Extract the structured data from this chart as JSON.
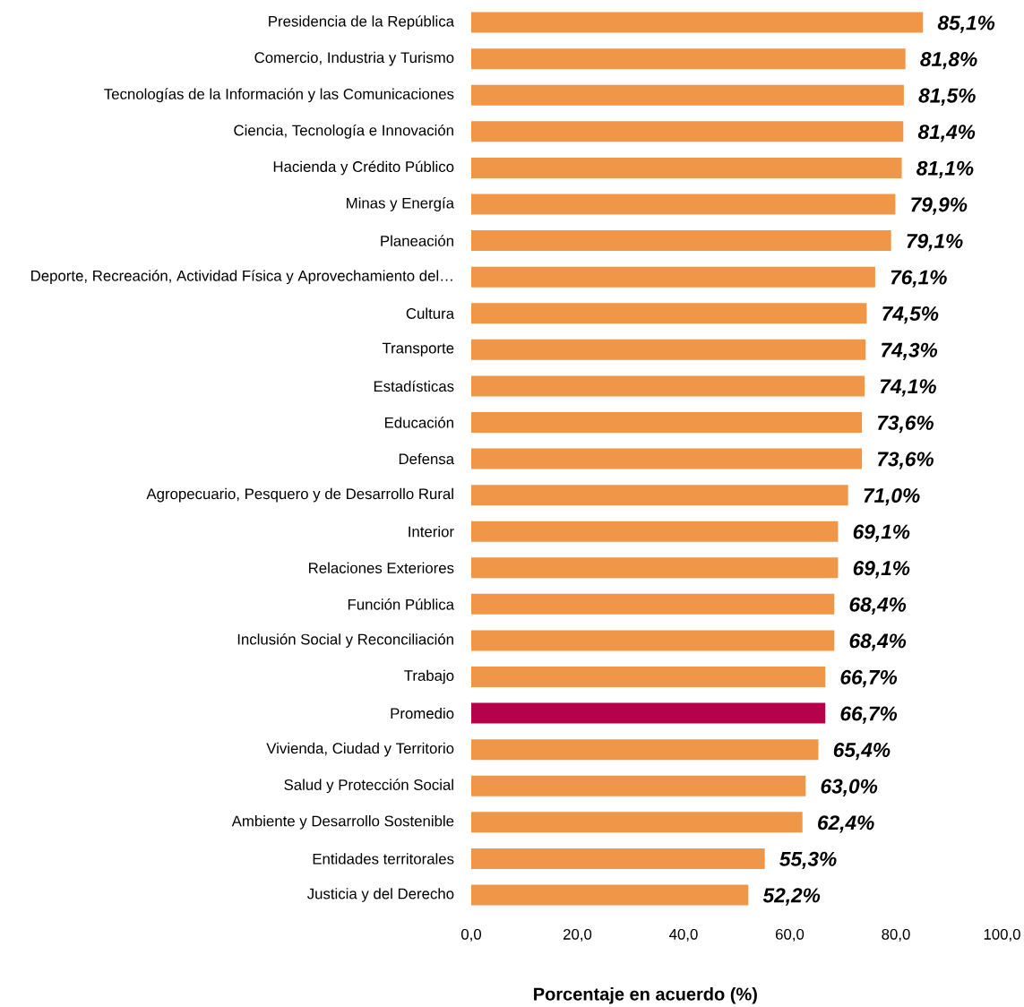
{
  "chart_data": {
    "type": "bar",
    "orientation": "horizontal",
    "xlabel": "Porcentaje en acuerdo (%)",
    "categories": [
      "Presidencia de la República",
      "Comercio, Industria y Turismo",
      "Tecnologías de la Información y las Comunicaciones",
      "Ciencia, Tecnología e Innovación",
      "Hacienda y Crédito Público",
      "Minas y Energía",
      "Planeación",
      "Deporte, Recreación, Actividad Física y Aprovechamiento del…",
      "Cultura",
      "Transporte",
      "Estadísticas",
      "Educación",
      "Defensa",
      "Agropecuario, Pesquero y de Desarrollo Rural",
      "Interior",
      "Relaciones Exteriores",
      "Función Pública",
      "Inclusión Social y Reconciliación",
      "Trabajo",
      "Promedio",
      "Vivienda, Ciudad y Territorio",
      "Salud y Protección Social",
      "Ambiente y Desarrollo Sostenible",
      "Entidades territorales",
      "Justicia y del Derecho"
    ],
    "values": [
      85.1,
      81.8,
      81.5,
      81.4,
      81.1,
      79.9,
      79.1,
      76.1,
      74.5,
      74.3,
      74.1,
      73.6,
      73.6,
      71.0,
      69.1,
      69.1,
      68.4,
      68.4,
      66.7,
      66.7,
      65.4,
      63.0,
      62.4,
      55.3,
      52.2
    ],
    "colors": [
      "#f09648",
      "#f09648",
      "#f09648",
      "#f09648",
      "#f09648",
      "#f09648",
      "#f09648",
      "#f09648",
      "#f09648",
      "#f09648",
      "#f09648",
      "#f09648",
      "#f09648",
      "#f09648",
      "#f09648",
      "#f09648",
      "#f09648",
      "#f09648",
      "#f09648",
      "#b5004a",
      "#f09648",
      "#f09648",
      "#f09648",
      "#f09648",
      "#f09648"
    ],
    "value_labels": [
      "85,1%",
      "81,8%",
      "81,5%",
      "81,4%",
      "81,1%",
      "79,9%",
      "79,1%",
      "76,1%",
      "74,5%",
      "74,3%",
      "74,1%",
      "73,6%",
      "73,6%",
      "71,0%",
      "69,1%",
      "69,1%",
      "68,4%",
      "68,4%",
      "66,7%",
      "66,7%",
      "65,4%",
      "63,0%",
      "62,4%",
      "55,3%",
      "52,2%"
    ],
    "xlim": [
      0,
      100
    ],
    "xticks": [
      {
        "value": 0,
        "label": "0,0"
      },
      {
        "value": 20,
        "label": "20,0"
      },
      {
        "value": 40,
        "label": "40,0"
      },
      {
        "value": 60,
        "label": "60,0"
      },
      {
        "value": 80,
        "label": "80,0"
      },
      {
        "value": 100,
        "label": "100,0"
      }
    ]
  }
}
